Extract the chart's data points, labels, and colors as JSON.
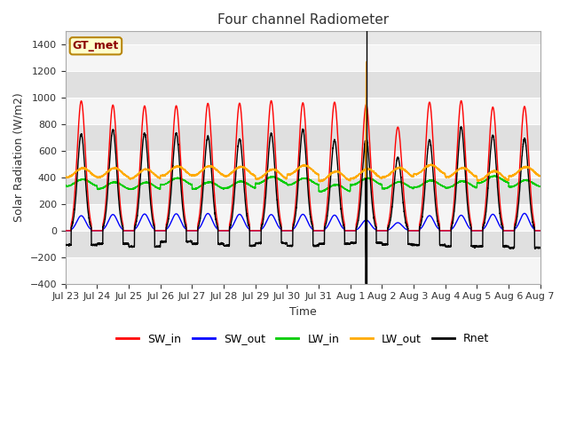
{
  "title": "Four channel Radiometer",
  "xlabel": "Time",
  "ylabel": "Solar Radiation (W/m2)",
  "ylim": [
    -400,
    1500
  ],
  "yticks": [
    -400,
    -200,
    0,
    200,
    400,
    600,
    800,
    1000,
    1200,
    1400
  ],
  "fig_bg": "#ffffff",
  "plot_bg": "#e8e8e8",
  "annotation_label": "GT_met",
  "annotation_color": "#8B0000",
  "annotation_bg": "#ffffcc",
  "annotation_border": "#b8860b",
  "series": {
    "SW_in": {
      "color": "#ff0000",
      "lw": 1.0
    },
    "SW_out": {
      "color": "#0000ff",
      "lw": 1.0
    },
    "LW_in": {
      "color": "#00cc00",
      "lw": 1.0
    },
    "LW_out": {
      "color": "#ffaa00",
      "lw": 1.0
    },
    "Rnet": {
      "color": "#000000",
      "lw": 1.0
    }
  },
  "x_tick_labels": [
    "Jul 23",
    "Jul 24",
    "Jul 25",
    "Jul 26",
    "Jul 27",
    "Jul 28",
    "Jul 29",
    "Jul 30",
    "Jul 31",
    "Aug 1",
    "Aug 2",
    "Aug 3",
    "Aug 4",
    "Aug 5",
    "Aug 6",
    "Aug 7"
  ],
  "n_days": 15,
  "points_per_day": 288,
  "vline_day": 9.5
}
